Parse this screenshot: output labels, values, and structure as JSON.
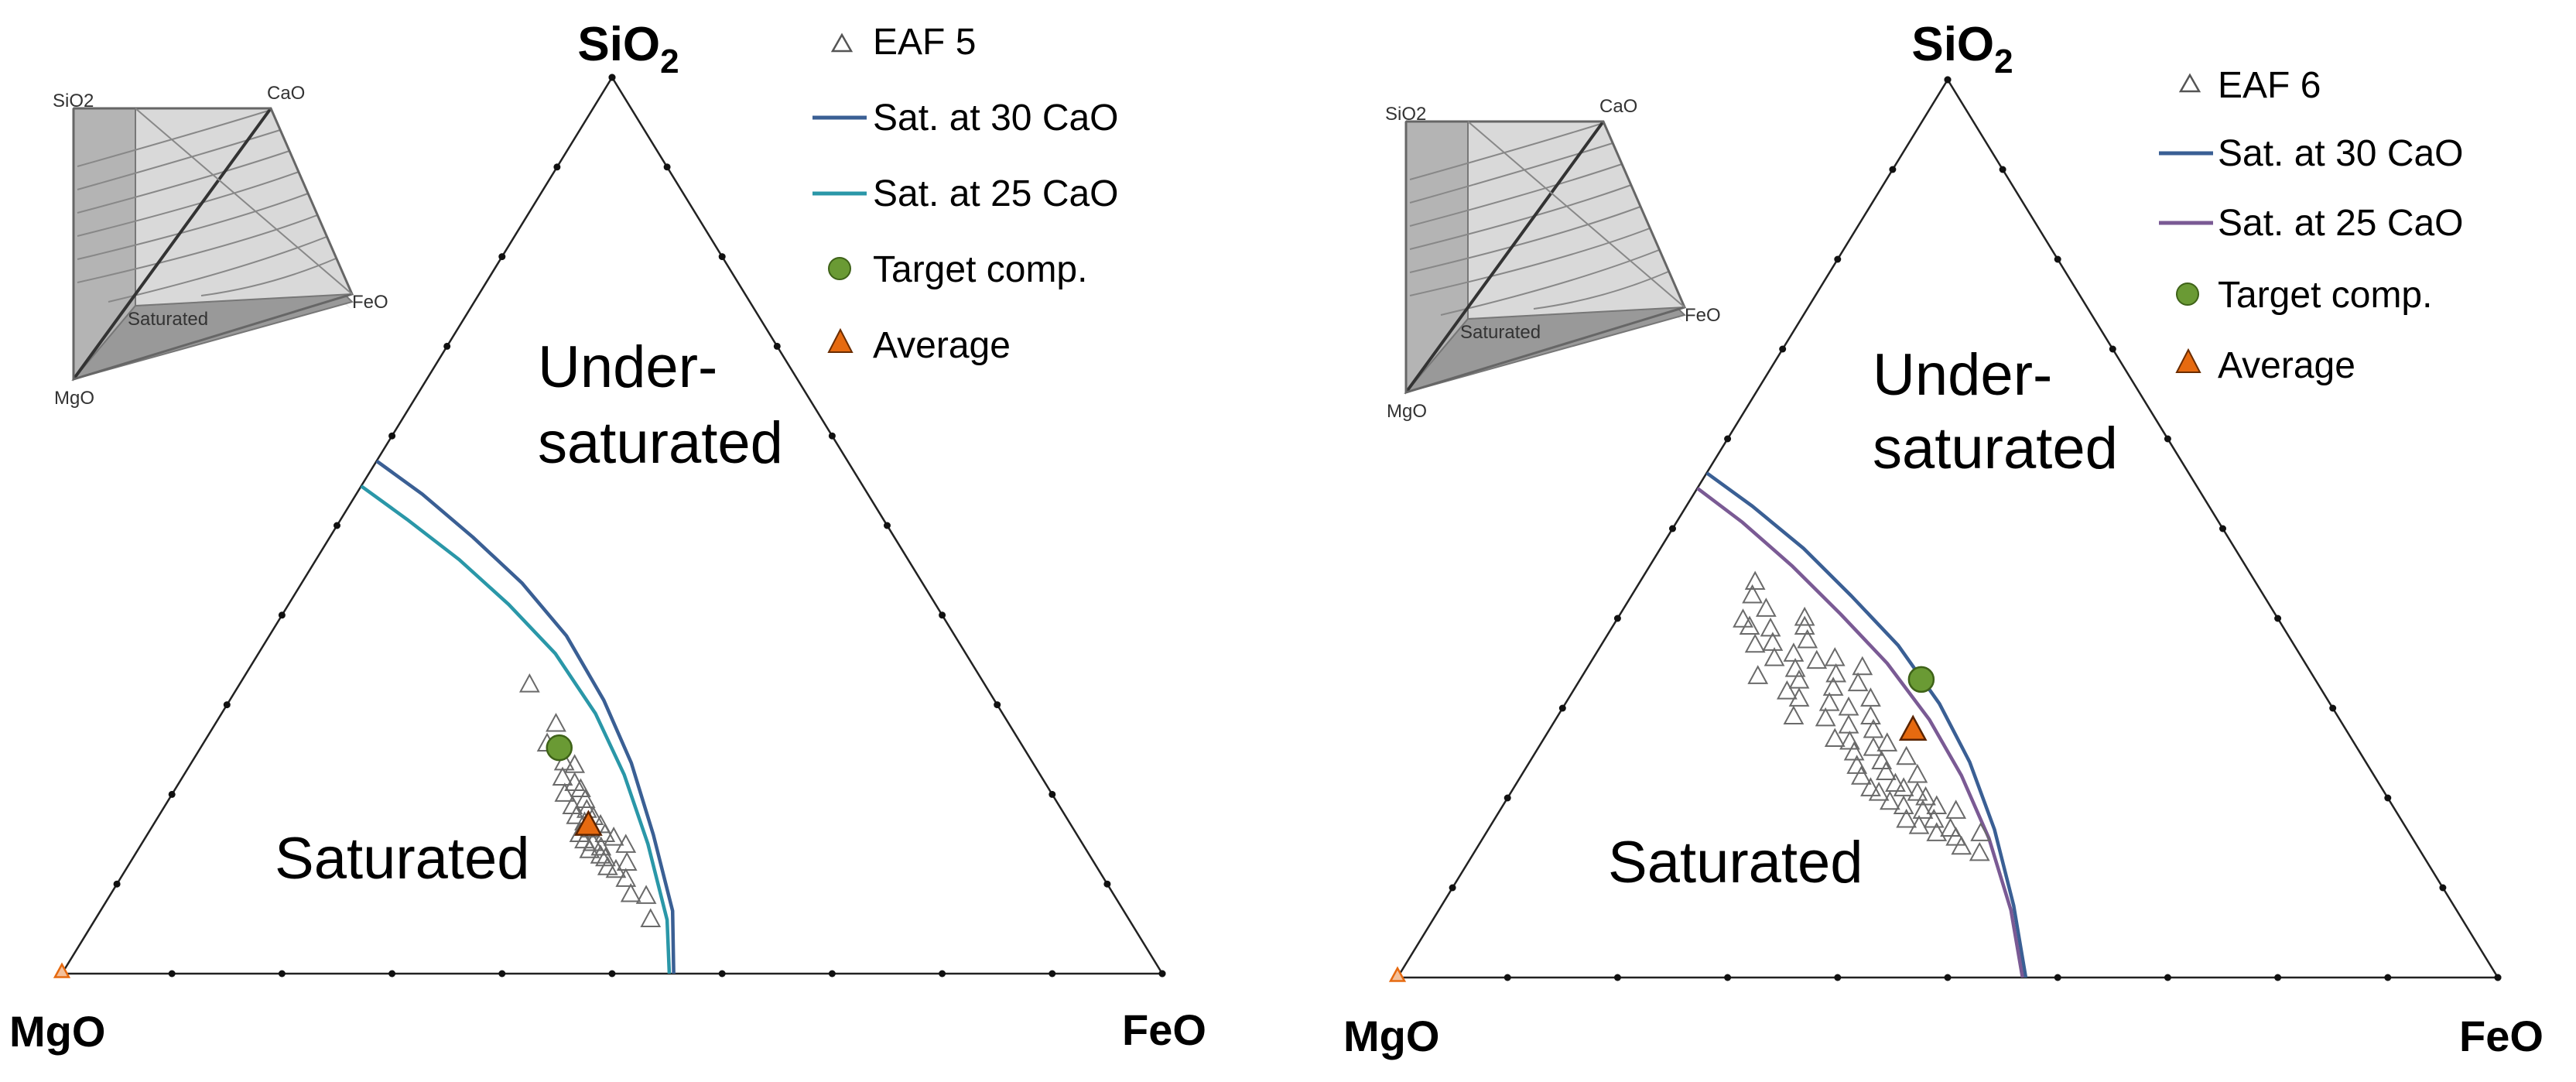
{
  "chart_data": [
    {
      "type": "ternary",
      "corners": {
        "top": "SiO",
        "top_subscript": "2",
        "left": "MgO",
        "right": "FeO"
      },
      "legend": [
        {
          "label": "EAF 5",
          "marker": "open-triangle"
        },
        {
          "label": "Sat. at 30 CaO",
          "marker": "line"
        },
        {
          "label": "Sat. at 25 CaO",
          "marker": "line"
        },
        {
          "label": "Target comp.",
          "marker": "circle"
        },
        {
          "label": "Average",
          "marker": "filled-triangle"
        }
      ],
      "region_labels": {
        "under_line1": "Under-",
        "under_line2": "saturated",
        "saturated": "Saturated"
      },
      "inset": {
        "labels": [
          "SiO2",
          "CaO",
          "FeO",
          "MgO",
          "Saturated"
        ]
      },
      "ticks_per_side": 10,
      "colors": {
        "sat30": "#3a5f94",
        "sat25": "#2a97a8",
        "target": "#6a9a34",
        "average": "#e66a10",
        "points": "#6a6a6a"
      },
      "series": [
        {
          "name": "Sat. at 30 CaO",
          "points": [
            [
              0,
              0.572
            ],
            [
              0.06,
              0.535
            ],
            [
              0.13,
              0.487
            ],
            [
              0.2,
              0.436
            ],
            [
              0.27,
              0.377
            ],
            [
              0.34,
              0.305
            ],
            [
              0.4,
              0.235
            ],
            [
              0.46,
              0.155
            ],
            [
              0.52,
              0.07
            ],
            [
              0.556,
              0
            ]
          ]
        },
        {
          "name": "Sat. at 25 CaO",
          "points": [
            [
              0,
              0.544
            ],
            [
              0.06,
              0.507
            ],
            [
              0.13,
              0.462
            ],
            [
              0.2,
              0.412
            ],
            [
              0.27,
              0.357
            ],
            [
              0.34,
              0.29
            ],
            [
              0.4,
              0.222
            ],
            [
              0.46,
              0.145
            ],
            [
              0.52,
              0.06
            ],
            [
              0.552,
              0
            ]
          ]
        }
      ],
      "target": {
        "feo": 0.326,
        "sio2": 0.252
      },
      "average": {
        "feo": 0.396,
        "sio2": 0.165
      },
      "corner_marker": {
        "feo": 0,
        "sio2": 0
      },
      "eaf_points": [
        [
          0.264,
          0.322
        ],
        [
          0.31,
          0.278
        ],
        [
          0.313,
          0.256
        ],
        [
          0.339,
          0.235
        ],
        [
          0.35,
          0.232
        ],
        [
          0.346,
          0.218
        ],
        [
          0.357,
          0.2
        ],
        [
          0.36,
          0.212
        ],
        [
          0.369,
          0.205
        ],
        [
          0.371,
          0.186
        ],
        [
          0.379,
          0.193
        ],
        [
          0.38,
          0.175
        ],
        [
          0.386,
          0.182
        ],
        [
          0.391,
          0.168
        ],
        [
          0.393,
          0.155
        ],
        [
          0.396,
          0.174
        ],
        [
          0.4,
          0.16
        ],
        [
          0.401,
          0.148
        ],
        [
          0.407,
          0.165
        ],
        [
          0.41,
          0.145
        ],
        [
          0.411,
          0.137
        ],
        [
          0.416,
          0.155
        ],
        [
          0.42,
          0.14
        ],
        [
          0.424,
          0.131
        ],
        [
          0.426,
          0.151
        ],
        [
          0.43,
          0.128
        ],
        [
          0.437,
          0.118
        ],
        [
          0.441,
          0.143
        ],
        [
          0.446,
          0.115
        ],
        [
          0.452,
          0.123
        ],
        [
          0.46,
          0.105
        ],
        [
          0.473,
          0.088
        ],
        [
          0.488,
          0.086
        ],
        [
          0.505,
          0.06
        ]
      ]
    },
    {
      "type": "ternary",
      "corners": {
        "top": "SiO",
        "top_subscript": "2",
        "left": "MgO",
        "right": "FeO"
      },
      "legend": [
        {
          "label": "EAF 6",
          "marker": "open-triangle"
        },
        {
          "label": "Sat. at 30 CaO",
          "marker": "line"
        },
        {
          "label": "Sat. at 25 CaO",
          "marker": "line"
        },
        {
          "label": "Target comp.",
          "marker": "circle"
        },
        {
          "label": "Average",
          "marker": "filled-triangle"
        }
      ],
      "region_labels": {
        "under_line1": "Under-",
        "under_line2": "saturated",
        "saturated": "Saturated"
      },
      "inset": {
        "labels": [
          "SiO2",
          "CaO",
          "FeO",
          "MgO",
          "Saturated"
        ]
      },
      "ticks_per_side": 10,
      "colors": {
        "sat30": "#3a5f94",
        "sat25": "#7a5a94",
        "target": "#6a9a34",
        "average": "#e66a10",
        "points": "#6a6a6a"
      },
      "series": [
        {
          "name": "Sat. at 30 CaO",
          "points": [
            [
              0,
              0.562
            ],
            [
              0.06,
              0.525
            ],
            [
              0.13,
              0.478
            ],
            [
              0.2,
              0.425
            ],
            [
              0.27,
              0.37
            ],
            [
              0.34,
              0.305
            ],
            [
              0.4,
              0.24
            ],
            [
              0.46,
              0.165
            ],
            [
              0.52,
              0.08
            ],
            [
              0.571,
              0
            ]
          ]
        },
        {
          "name": "Sat. at 25 CaO",
          "points": [
            [
              0,
              0.545
            ],
            [
              0.06,
              0.507
            ],
            [
              0.13,
              0.458
            ],
            [
              0.2,
              0.405
            ],
            [
              0.27,
              0.35
            ],
            [
              0.34,
              0.287
            ],
            [
              0.4,
              0.225
            ],
            [
              0.46,
              0.155
            ],
            [
              0.52,
              0.075
            ],
            [
              0.568,
              0
            ]
          ]
        }
      ],
      "target": {
        "feo": 0.31,
        "sio2": 0.332
      },
      "average": {
        "feo": 0.331,
        "sio2": 0.275
      },
      "corner_marker": {
        "feo": 0,
        "sio2": 0
      },
      "eaf_points": [
        [
          0.105,
          0.44
        ],
        [
          0.11,
          0.425
        ],
        [
          0.115,
          0.398
        ],
        [
          0.125,
          0.39
        ],
        [
          0.13,
          0.41
        ],
        [
          0.14,
          0.37
        ],
        [
          0.145,
          0.388
        ],
        [
          0.155,
          0.372
        ],
        [
          0.16,
          0.335
        ],
        [
          0.165,
          0.355
        ],
        [
          0.17,
          0.4
        ],
        [
          0.175,
          0.39
        ],
        [
          0.18,
          0.36
        ],
        [
          0.185,
          0.375
        ],
        [
          0.19,
          0.343
        ],
        [
          0.195,
          0.318
        ],
        [
          0.2,
          0.33
        ],
        [
          0.205,
          0.352
        ],
        [
          0.21,
          0.31
        ],
        [
          0.215,
          0.29
        ],
        [
          0.22,
          0.355
        ],
        [
          0.23,
          0.337
        ],
        [
          0.235,
          0.322
        ],
        [
          0.24,
          0.305
        ],
        [
          0.245,
          0.288
        ],
        [
          0.25,
          0.345
        ],
        [
          0.255,
          0.327
        ],
        [
          0.26,
          0.3
        ],
        [
          0.265,
          0.265
        ],
        [
          0.27,
          0.28
        ],
        [
          0.275,
          0.31
        ],
        [
          0.28,
          0.262
        ],
        [
          0.285,
          0.29
        ],
        [
          0.29,
          0.25
        ],
        [
          0.295,
          0.275
        ],
        [
          0.3,
          0.235
        ],
        [
          0.305,
          0.255
        ],
        [
          0.31,
          0.223
        ],
        [
          0.315,
          0.26
        ],
        [
          0.32,
          0.24
        ],
        [
          0.325,
          0.21
        ],
        [
          0.33,
          0.228
        ],
        [
          0.335,
          0.205
        ],
        [
          0.34,
          0.245
        ],
        [
          0.345,
          0.215
        ],
        [
          0.35,
          0.195
        ],
        [
          0.355,
          0.21
        ],
        [
          0.36,
          0.225
        ],
        [
          0.365,
          0.19
        ],
        [
          0.37,
          0.205
        ],
        [
          0.375,
          0.175
        ],
        [
          0.38,
          0.2
        ],
        [
          0.385,
          0.185
        ],
        [
          0.39,
          0.168
        ],
        [
          0.395,
          0.19
        ],
        [
          0.4,
          0.175
        ],
        [
          0.41,
          0.16
        ],
        [
          0.415,
          0.185
        ],
        [
          0.42,
          0.165
        ],
        [
          0.43,
          0.155
        ],
        [
          0.44,
          0.145
        ],
        [
          0.45,
          0.16
        ],
        [
          0.46,
          0.138
        ]
      ]
    }
  ]
}
